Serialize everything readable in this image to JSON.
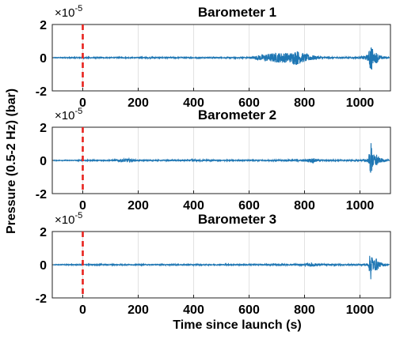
{
  "chart_data": {
    "type": "line",
    "panels": [
      {
        "title": "Barometer 1",
        "series": [
          {
            "x": [
              -90,
              0,
              100,
              200,
              300,
              400,
              500,
              600,
              650,
              700,
              750,
              770,
              800,
              850,
              900,
              1000,
              1030,
              1040,
              1045,
              1050,
              1060,
              1070,
              1100
            ],
            "amplitude": [
              0.02,
              0.04,
              0.03,
              0.03,
              0.04,
              0.03,
              0.03,
              0.04,
              0.2,
              0.3,
              0.3,
              0.45,
              0.25,
              0.08,
              0.04,
              0.05,
              0.2,
              1.0,
              0.6,
              0.25,
              0.35,
              0.15,
              0.05
            ]
          }
        ]
      },
      {
        "title": "Barometer 2",
        "series": [
          {
            "x": [
              -90,
              0,
              100,
              160,
              200,
              300,
              400,
              500,
              600,
              700,
              800,
              830,
              850,
              900,
              1000,
              1030,
              1040,
              1045,
              1050,
              1060,
              1070,
              1100
            ],
            "amplitude": [
              0.02,
              0.03,
              0.03,
              0.12,
              0.03,
              0.03,
              0.06,
              0.03,
              0.03,
              0.04,
              0.05,
              0.15,
              0.05,
              0.04,
              0.04,
              0.1,
              1.15,
              0.6,
              0.35,
              0.4,
              0.15,
              0.05
            ]
          }
        ]
      },
      {
        "title": "Barometer 3",
        "series": [
          {
            "x": [
              -90,
              0,
              100,
              200,
              300,
              400,
              500,
              600,
              700,
              800,
              830,
              850,
              900,
              1000,
              1030,
              1040,
              1045,
              1050,
              1060,
              1070,
              1100
            ],
            "amplitude": [
              0.02,
              0.03,
              0.03,
              0.03,
              0.03,
              0.03,
              0.03,
              0.03,
              0.04,
              0.05,
              0.12,
              0.05,
              0.04,
              0.04,
              0.1,
              1.0,
              0.55,
              0.3,
              0.4,
              0.15,
              0.05
            ]
          }
        ]
      }
    ],
    "event_line_x": 0,
    "xlim": [
      -110,
      1110
    ],
    "ylim": [
      -2,
      2
    ],
    "xticks": [
      "0",
      "200",
      "400",
      "600",
      "800",
      "1000"
    ],
    "yticks": [
      "2",
      "0",
      "-2"
    ],
    "y_multiplier": "×10",
    "y_multiplier_exp": "-5",
    "xlabel": "Time since launch (s)",
    "ylabel": "Pressure (0.5-2 Hz) (bar)",
    "grid": true,
    "colors": {
      "signal": "#1f77b4",
      "event_line": "#e8231e",
      "grid": "#e2e2e2",
      "axes": "#222222"
    }
  }
}
